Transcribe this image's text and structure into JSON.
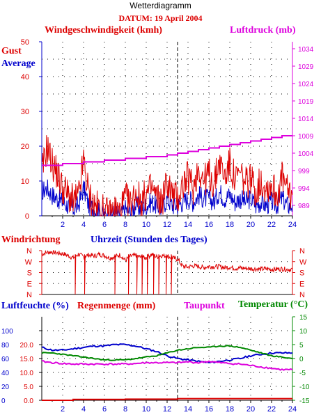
{
  "header": {
    "title": "Wetterdiagramm",
    "date": "DATUM: 19 April 2004"
  },
  "colors": {
    "red": "#dd0000",
    "blue": "#0000cc",
    "magenta": "#dd00dd",
    "green": "#008800",
    "grid": "#000000"
  },
  "chart_data": [
    {
      "type": "line",
      "title": "",
      "xlabel": "",
      "labels": {
        "wind": "Windgeschwindigkeit (kmh)",
        "pressure": "Luftdruck (mb)",
        "gust": "Gust",
        "average": "Average"
      },
      "xlim": [
        0,
        24
      ],
      "x_ticks": [
        "2",
        "4",
        "6",
        "8",
        "10",
        "12",
        "14",
        "16",
        "18",
        "20",
        "22",
        "24"
      ],
      "ylim": [
        0,
        50
      ],
      "y_ticks": [
        "0",
        "10",
        "20",
        "30",
        "40",
        "50"
      ],
      "y2lim": [
        986,
        1036
      ],
      "y2_ticks": [
        "989",
        "994",
        "999",
        "1004",
        "1009",
        "1014",
        "1019",
        "1024",
        "1029",
        "1034"
      ],
      "series": [
        {
          "name": "Gust",
          "x": [
            0,
            0.5,
            1,
            1.5,
            2,
            2.5,
            3,
            3.5,
            4,
            4.5,
            5,
            5.5,
            6,
            6.5,
            7,
            7.5,
            8,
            8.5,
            9,
            9.5,
            10,
            10.5,
            11,
            11.5,
            12,
            12.5,
            13,
            13.5,
            14,
            14.5,
            15,
            15.5,
            16,
            16.5,
            17,
            17.5,
            18,
            18.5,
            19,
            19.5,
            20,
            20.5,
            21,
            21.5,
            22,
            22.5,
            23,
            23.5,
            24
          ],
          "values": [
            12,
            20,
            15,
            12,
            8,
            6,
            4,
            5,
            16,
            6,
            3,
            2,
            1,
            0,
            2,
            1,
            5,
            3,
            7,
            4,
            6,
            8,
            5,
            4,
            10,
            6,
            5,
            9,
            11,
            8,
            14,
            10,
            12,
            9,
            16,
            11,
            15,
            10,
            12,
            9,
            11,
            7,
            10,
            8,
            9,
            6,
            11,
            7,
            6
          ]
        },
        {
          "name": "Average",
          "x": [
            0,
            0.5,
            1,
            1.5,
            2,
            2.5,
            3,
            3.5,
            4,
            4.5,
            5,
            5.5,
            6,
            6.5,
            7,
            7.5,
            8,
            8.5,
            9,
            9.5,
            10,
            10.5,
            11,
            11.5,
            12,
            12.5,
            13,
            13.5,
            14,
            14.5,
            15,
            15.5,
            16,
            16.5,
            17,
            17.5,
            18,
            18.5,
            19,
            19.5,
            20,
            20.5,
            21,
            21.5,
            22,
            22.5,
            23,
            23.5,
            24
          ],
          "values": [
            7,
            8,
            6,
            5,
            4,
            3,
            2,
            3,
            8,
            3,
            2,
            1,
            0,
            0,
            1,
            0,
            2,
            1,
            3,
            2,
            3,
            4,
            3,
            2,
            5,
            3,
            3,
            4,
            5,
            4,
            6,
            5,
            5,
            4,
            7,
            5,
            6,
            4,
            5,
            4,
            5,
            3,
            4,
            3,
            4,
            3,
            5,
            3,
            3
          ]
        },
        {
          "name": "Luftdruck",
          "axis": "right",
          "x": [
            0,
            2,
            4,
            6,
            7,
            8,
            10,
            12,
            13,
            14,
            15,
            16,
            17,
            18,
            19,
            20,
            21,
            22,
            23,
            24
          ],
          "values": [
            1000.5,
            1001,
            1001.5,
            1002,
            1002,
            1002.5,
            1003,
            1003.5,
            1004,
            1004.5,
            1005,
            1005.5,
            1006,
            1006.5,
            1007,
            1007.5,
            1008,
            1008.5,
            1009,
            1009
          ]
        }
      ]
    },
    {
      "type": "line",
      "title": "",
      "labels": {
        "direction": "Windrichtung",
        "time": "Uhrzeit (Stunden des Tages)"
      },
      "xlim": [
        0,
        24
      ],
      "y_ticks": [
        "N",
        "S",
        "E",
        "W",
        "N"
      ],
      "y_ticks_top_down": [
        "N",
        "W",
        "S",
        "E",
        "N"
      ],
      "ylim_deg": [
        0,
        360
      ],
      "series": [
        {
          "name": "Windrichtung",
          "x": [
            0,
            0.5,
            1,
            1.5,
            2,
            2.5,
            3,
            3.5,
            4,
            4.5,
            5,
            5.5,
            6,
            6.5,
            7,
            7.5,
            8,
            8.5,
            9,
            9.5,
            10,
            10.5,
            11,
            11.5,
            12,
            12.5,
            13,
            13.5,
            14,
            14.5,
            15,
            15.5,
            16,
            16.5,
            17,
            17.5,
            18,
            18.5,
            19,
            19.5,
            20,
            20.5,
            21,
            21.5,
            22,
            22.5,
            23,
            23.5,
            24
          ],
          "values": [
            330,
            345,
            350,
            340,
            335,
            320,
            300,
            330,
            310,
            325,
            315,
            330,
            320,
            300,
            310,
            325,
            280,
            315,
            320,
            305,
            300,
            330,
            310,
            320,
            315,
            300,
            290,
            230,
            225,
            235,
            230,
            220,
            232,
            228,
            230,
            220,
            225,
            215,
            218,
            215,
            212,
            210,
            208,
            210,
            206,
            208,
            210,
            206,
            207
          ]
        }
      ]
    },
    {
      "type": "line",
      "title": "",
      "labels": {
        "humidity": "Luftfeuchte (%)",
        "rain": "Regenmenge (mm)",
        "dewpoint": "Taupunkt",
        "temperature": "Temperatur (°C)"
      },
      "xlim": [
        0,
        24
      ],
      "x_ticks": [
        "2",
        "4",
        "6",
        "8",
        "10",
        "12",
        "14",
        "16",
        "18",
        "20",
        "22",
        "24"
      ],
      "humidity_ticks": [
        "0",
        "20",
        "40",
        "60",
        "80",
        "100"
      ],
      "rain_ticks": [
        "0.0",
        "5.0",
        "10.0",
        "15.0",
        "20.0"
      ],
      "temp_ticks": [
        "-15",
        "-10",
        "-5",
        "0",
        "5",
        "10",
        "15"
      ],
      "temp_lim": [
        -15,
        15
      ],
      "series": [
        {
          "name": "Luftfeuchte",
          "x": [
            0,
            1,
            2,
            3,
            4,
            5,
            6,
            7,
            8,
            9,
            10,
            11,
            12,
            13,
            14,
            15,
            16,
            17,
            18,
            19,
            20,
            21,
            22,
            23,
            24
          ],
          "values_temp_units": [
            4,
            3,
            3,
            3.5,
            4,
            4.5,
            4.5,
            5,
            5,
            4.5,
            3.5,
            2.5,
            1,
            0,
            -0.5,
            -1,
            -1.5,
            -1,
            -0.5,
            0,
            1,
            1.5,
            2,
            2,
            2
          ]
        },
        {
          "name": "Temperatur",
          "x": [
            0,
            1,
            2,
            3,
            4,
            5,
            6,
            7,
            8,
            9,
            10,
            11,
            12,
            13,
            14,
            15,
            16,
            17,
            18,
            19,
            20,
            21,
            22,
            23,
            24
          ],
          "values": [
            2,
            2,
            1.5,
            1,
            0.5,
            0,
            -0.5,
            -0.5,
            -0.5,
            0,
            0.5,
            1,
            2,
            3,
            3.5,
            4,
            4,
            4.5,
            4.5,
            4,
            3,
            2,
            1,
            0.5,
            0
          ]
        },
        {
          "name": "Taupunkt",
          "x": [
            0,
            1,
            2,
            3,
            4,
            5,
            6,
            7,
            8,
            9,
            10,
            11,
            12,
            13,
            14,
            15,
            16,
            17,
            18,
            19,
            20,
            21,
            22,
            23,
            24
          ],
          "values": [
            -1,
            -1.5,
            -1.8,
            -2,
            -2,
            -2,
            -2,
            -2,
            -2,
            -1.8,
            -1.5,
            -1.5,
            -1.5,
            -1.5,
            -1.2,
            -1.5,
            -1,
            -1.5,
            -1.8,
            -2,
            -2.5,
            -3,
            -3.5,
            -4,
            -4
          ]
        },
        {
          "name": "Regenmenge",
          "x": [
            0,
            3,
            8,
            13,
            24
          ],
          "values": [
            0,
            0.3,
            0.4,
            0.6,
            0.6
          ]
        }
      ]
    }
  ]
}
